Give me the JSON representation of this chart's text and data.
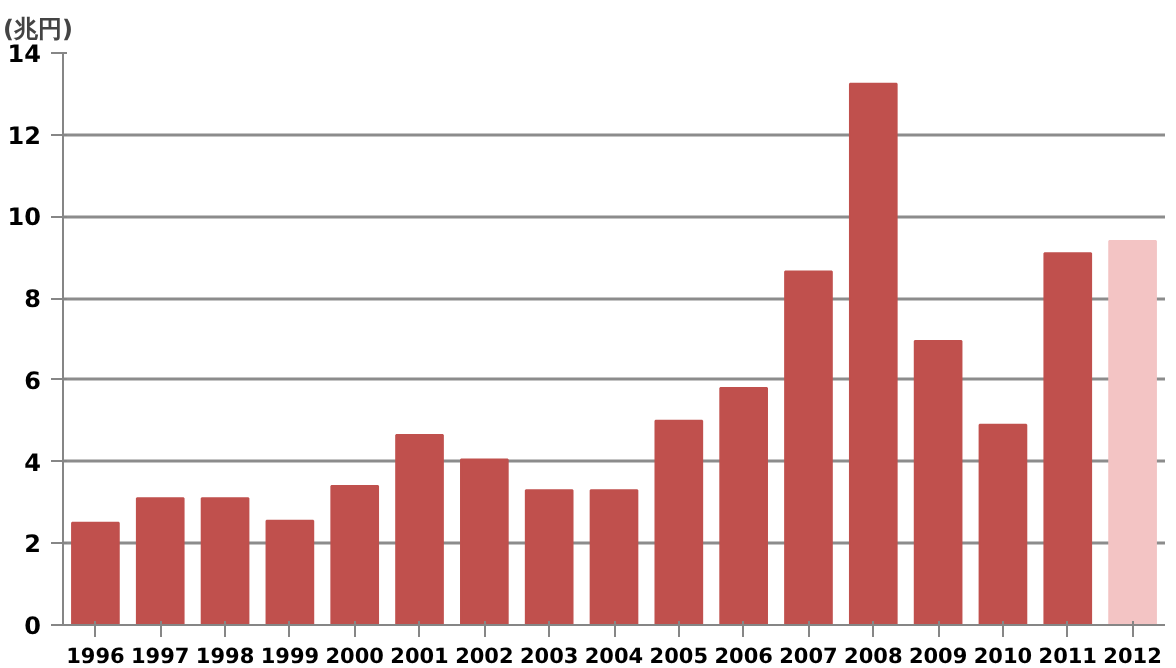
{
  "chart_data": {
    "type": "bar",
    "ylabel": "(兆円)",
    "categories": [
      "1996",
      "1997",
      "1998",
      "1999",
      "2000",
      "2001",
      "2002",
      "2003",
      "2004",
      "2005",
      "2006",
      "2007",
      "2008",
      "2009",
      "2010",
      "2011",
      "2012"
    ],
    "values": [
      2.5,
      3.1,
      3.1,
      2.55,
      3.4,
      4.65,
      4.05,
      3.3,
      3.3,
      5.0,
      5.8,
      8.65,
      13.25,
      6.95,
      4.9,
      9.1,
      9.4
    ],
    "colors": [
      "#c0504d",
      "#c0504d",
      "#c0504d",
      "#c0504d",
      "#c0504d",
      "#c0504d",
      "#c0504d",
      "#c0504d",
      "#c0504d",
      "#c0504d",
      "#c0504d",
      "#c0504d",
      "#c0504d",
      "#c0504d",
      "#c0504d",
      "#c0504d",
      "#f3c4c4"
    ],
    "ylim": [
      0,
      14
    ],
    "yticks": [
      0,
      2,
      4,
      6,
      8,
      10,
      12,
      14
    ],
    "grid": "y"
  }
}
